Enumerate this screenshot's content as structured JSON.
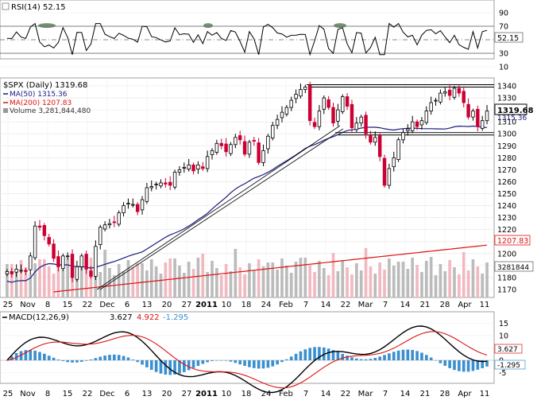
{
  "rsi": {
    "label": "RSI(14) 52.15",
    "ticks": [
      "90",
      "70",
      "50",
      "30",
      "10"
    ],
    "last_value": "52.15"
  },
  "price": {
    "title": "$SPX (Daily) 1319.68",
    "ma50_label": "MA(50) 1315.36",
    "ma200_label": "MA(200) 1207.83",
    "volume_label": "Volume 3,281,844,480",
    "ticks": [
      "1340",
      "1330",
      "1320",
      "1310",
      "1300",
      "1290",
      "1280",
      "1270",
      "1260",
      "1250",
      "1240",
      "1230",
      "1220",
      "1210",
      "1200",
      "1190",
      "1180",
      "1170"
    ],
    "last_price": "1319.68",
    "ma50_value": "1315.36",
    "ma200_value": "1207.83",
    "volume_value": "3281844"
  },
  "macd": {
    "label_prefix": "MACD(12,26,9)",
    "macd_value": "3.627",
    "signal_value": "4.922",
    "hist_value": "-1.295",
    "ticks": [
      "15",
      "10",
      "5",
      "0",
      "-5"
    ]
  },
  "x_axis": {
    "labels": [
      "25",
      "Nov",
      "8",
      "15",
      "22",
      "Dec",
      "6",
      "13",
      "20",
      "27",
      "2011",
      "10",
      "18",
      "24",
      "Feb",
      "7",
      "14",
      "22",
      "Mar",
      "7",
      "14",
      "21",
      "28",
      "Apr",
      "11"
    ]
  },
  "colors": {
    "up": "#000000",
    "down": "#cc0033",
    "ma50": "#1a1a80",
    "ma200": "#dd1111",
    "vol_up": "#bbbbbb",
    "vol_down": "#f2b8c0",
    "hist": "#3b8fcf",
    "rsi_fill": "#557755"
  },
  "chart_data": {
    "type": "candlestick",
    "title": "$SPX (Daily) 1319.68",
    "ylim": [
      1165,
      1345
    ],
    "series": [
      {
        "name": "$SPX (Daily)",
        "values": [
          1185,
          1183,
          1187,
          1186,
          1185,
          1198,
          1223,
          1222,
          1215,
          1208,
          1196,
          1189,
          1198,
          1198,
          1180,
          1189,
          1198,
          1187,
          1181,
          1206,
          1222,
          1224,
          1225,
          1226,
          1234,
          1240,
          1242,
          1241,
          1235,
          1245,
          1255,
          1256,
          1258,
          1259,
          1258,
          1257,
          1268,
          1270,
          1272,
          1274,
          1269,
          1274,
          1271,
          1281,
          1286,
          1292,
          1290,
          1285,
          1291,
          1297,
          1295,
          1283,
          1293,
          1294,
          1276,
          1286,
          1298,
          1307,
          1312,
          1318,
          1322,
          1328,
          1333,
          1337,
          1339,
          1311,
          1306,
          1319,
          1330,
          1322,
          1309,
          1320,
          1331,
          1323,
          1305,
          1309,
          1314,
          1300,
          1293,
          1297,
          1281,
          1257,
          1271,
          1280,
          1295,
          1301,
          1304,
          1310,
          1306,
          1311,
          1319,
          1326,
          1328,
          1334,
          1335,
          1332,
          1338,
          1334,
          1326,
          1314,
          1319,
          1306,
          1311,
          1319
        ]
      },
      {
        "name": "MA(50)",
        "values": [
          1315.36
        ]
      },
      {
        "name": "MA(200)",
        "values": [
          1207.83
        ]
      }
    ],
    "x_labels": [
      "25",
      "Nov",
      "8",
      "15",
      "22",
      "Dec",
      "6",
      "13",
      "20",
      "27",
      "2011",
      "10",
      "18",
      "24",
      "Feb",
      "7",
      "14",
      "22",
      "Mar",
      "7",
      "14",
      "21",
      "28",
      "Apr",
      "11"
    ]
  }
}
